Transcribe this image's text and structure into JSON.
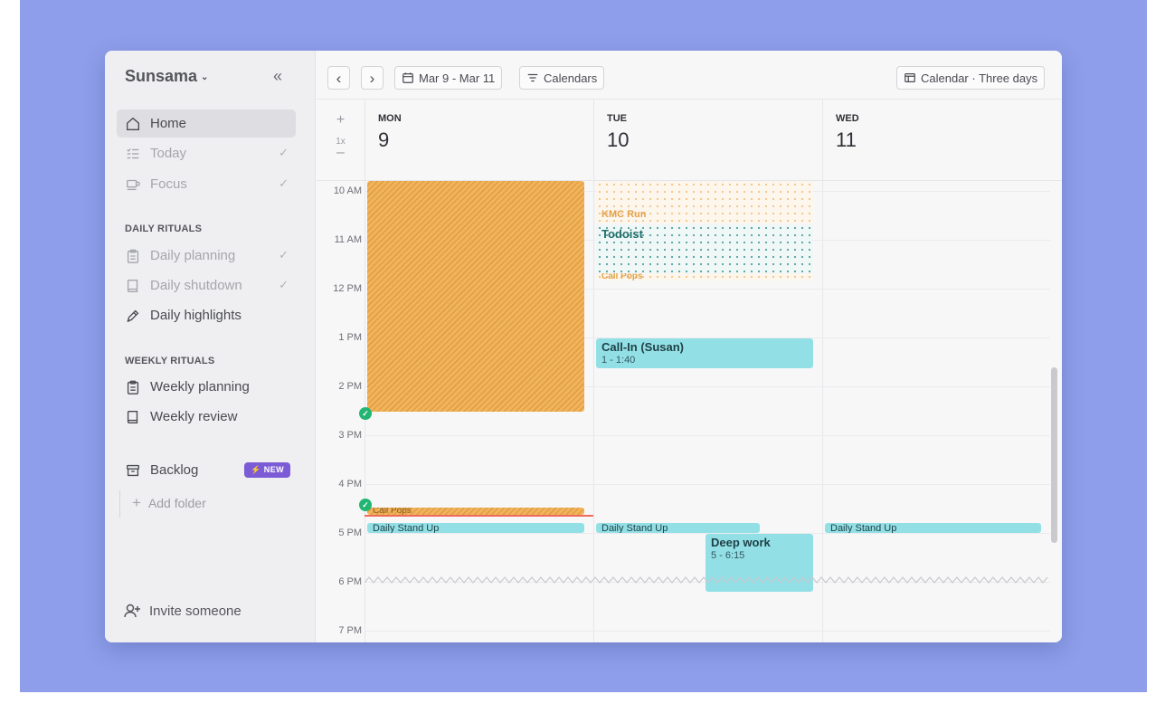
{
  "sidebar": {
    "brand": "Sunsama",
    "nav": [
      {
        "label": "Home",
        "icon": "home-icon",
        "active": true,
        "checked": false
      },
      {
        "label": "Today",
        "icon": "list-checks-icon",
        "active": false,
        "checked": true
      },
      {
        "label": "Focus",
        "icon": "coffee-icon",
        "active": false,
        "checked": true
      }
    ],
    "daily_rituals": {
      "heading": "DAILY RITUALS",
      "items": [
        {
          "label": "Daily planning",
          "icon": "clipboard-icon",
          "checked": true
        },
        {
          "label": "Daily shutdown",
          "icon": "book-icon",
          "checked": true
        },
        {
          "label": "Daily highlights",
          "icon": "pen-icon",
          "checked": false
        }
      ]
    },
    "weekly_rituals": {
      "heading": "WEEKLY RITUALS",
      "items": [
        {
          "label": "Weekly planning",
          "icon": "clipboard-icon"
        },
        {
          "label": "Weekly review",
          "icon": "book-icon"
        }
      ]
    },
    "backlog": {
      "label": "Backlog",
      "badge": "NEW",
      "badge_glyph": "⚡"
    },
    "add_folder": "Add folder",
    "invite": "Invite someone"
  },
  "toolbar": {
    "prev": "‹",
    "next": "›",
    "date_range": "Mar 9 - Mar 11",
    "calendars": "Calendars",
    "view": "Calendar · Three days"
  },
  "zoom": {
    "plus": "+",
    "level": "1x",
    "minus": "–"
  },
  "days": [
    {
      "dow": "MON",
      "num": "9"
    },
    {
      "dow": "TUE",
      "num": "10"
    },
    {
      "dow": "WED",
      "num": "11"
    }
  ],
  "times": [
    "10 AM",
    "11 AM",
    "12 PM",
    "1 PM",
    "2 PM",
    "3 PM",
    "4 PM",
    "5 PM",
    "6 PM",
    "7 PM"
  ],
  "events": {
    "kmc_run": "KMC Run",
    "todoist": "Todoist",
    "call_pops_tue": "Call Pops",
    "call_in_title": "Call-In (Susan)",
    "call_in_time": "1 - 1:40",
    "call_pops_mon": "Call Pops",
    "standup_mon": "Daily Stand Up",
    "standup_tue": "Daily Stand Up",
    "standup_wed": "Daily Stand Up",
    "deep_work_title": "Deep work",
    "deep_work_time": "5 - 6:15"
  },
  "colors": {
    "background": "#8e9eea",
    "event_teal": "#92e0e6",
    "event_orange": "#f0b45e",
    "badge": "#7c5cd6",
    "done_green": "#22b573"
  }
}
